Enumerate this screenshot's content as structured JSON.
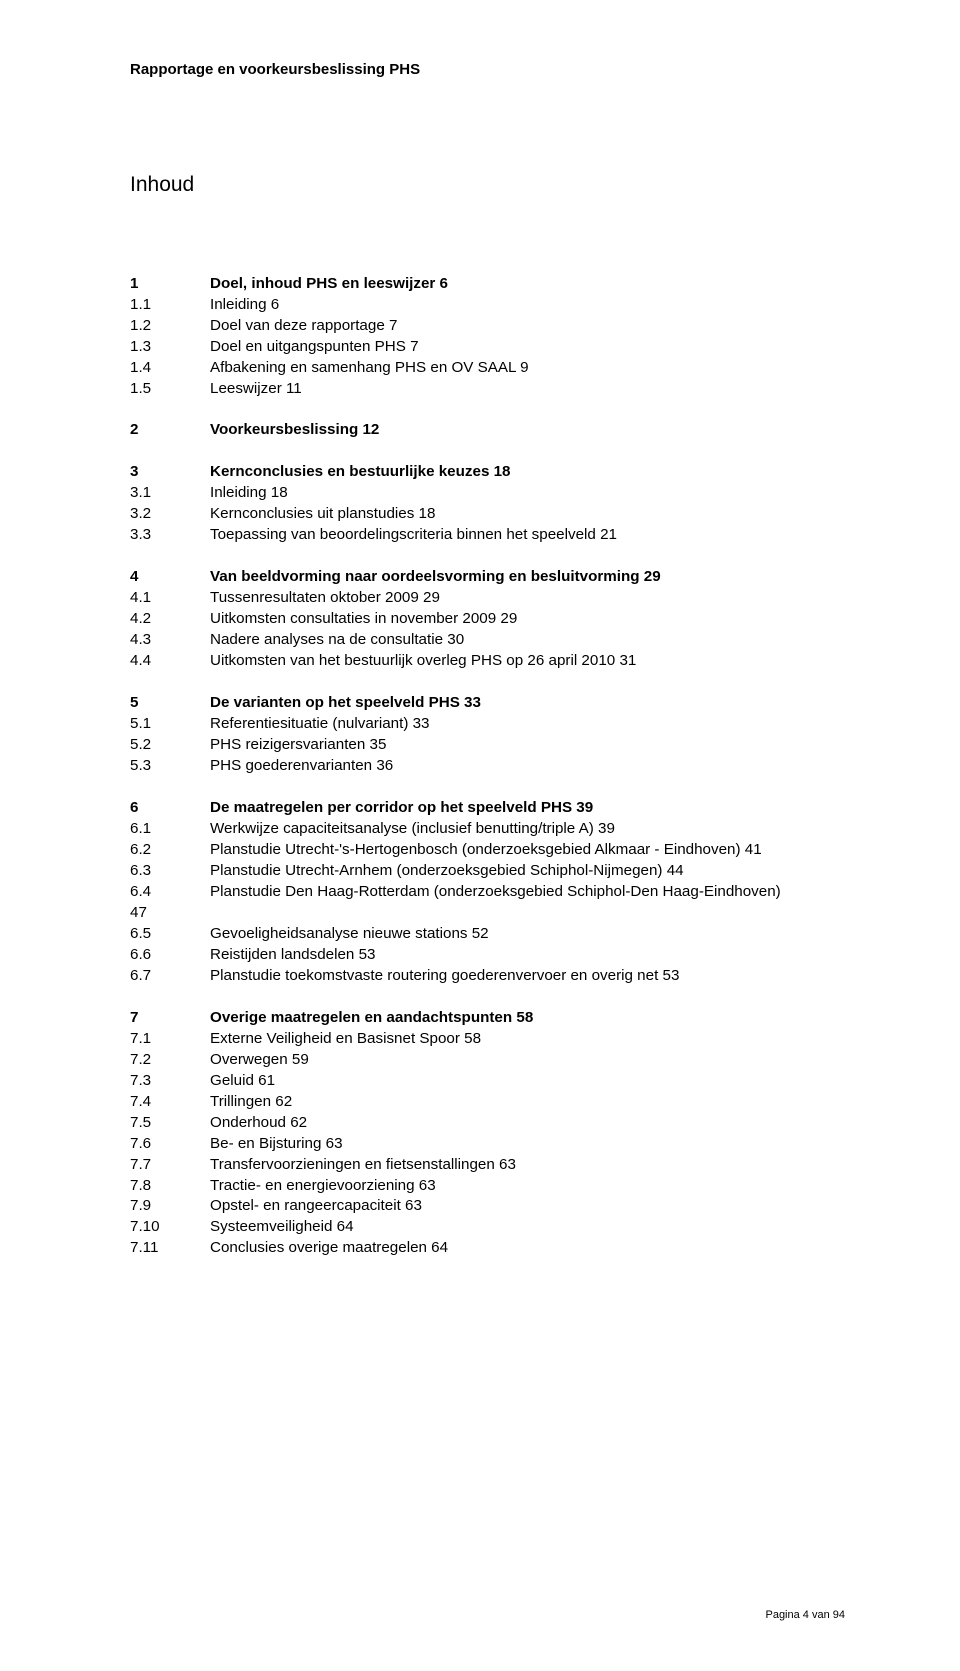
{
  "running_head": "Rapportage en voorkeursbeslissing PHS",
  "title": "Inhoud",
  "footer": "Pagina 4 van 94",
  "blocks": [
    {
      "rows": [
        {
          "num": "1",
          "text": "Doel, inhoud PHS en leeswijzer 6",
          "bold": true
        },
        {
          "num": "1.1",
          "text": "Inleiding 6"
        },
        {
          "num": "1.2",
          "text": "Doel van deze rapportage 7"
        },
        {
          "num": "1.3",
          "text": "Doel en uitgangspunten PHS 7"
        },
        {
          "num": "1.4",
          "text": "Afbakening en samenhang PHS en OV SAAL 9"
        },
        {
          "num": "1.5",
          "text": "Leeswijzer 11"
        }
      ]
    },
    {
      "rows": [
        {
          "num": "2",
          "text": "Voorkeursbeslissing 12",
          "bold": true
        }
      ]
    },
    {
      "rows": [
        {
          "num": "3",
          "text": "Kernconclusies en bestuurlijke keuzes 18",
          "bold": true
        },
        {
          "num": "3.1",
          "text": "Inleiding 18"
        },
        {
          "num": "3.2",
          "text": "Kernconclusies uit planstudies 18"
        },
        {
          "num": "3.3",
          "text": "Toepassing van beoordelingscriteria binnen het speelveld 21"
        }
      ]
    },
    {
      "rows": [
        {
          "num": "4",
          "text": "Van beeldvorming naar oordeelsvorming en besluitvorming 29",
          "bold": true
        },
        {
          "num": "4.1",
          "text": "Tussenresultaten oktober 2009 29"
        },
        {
          "num": "4.2",
          "text": "Uitkomsten consultaties in november 2009 29"
        },
        {
          "num": "4.3",
          "text": "Nadere analyses na de consultatie 30"
        },
        {
          "num": "4.4",
          "text": "Uitkomsten van het bestuurlijk overleg PHS op 26 april 2010 31"
        }
      ]
    },
    {
      "rows": [
        {
          "num": "5",
          "text": "De varianten op het speelveld PHS 33",
          "bold": true
        },
        {
          "num": "5.1",
          "text": "Referentiesituatie (nulvariant) 33"
        },
        {
          "num": "5.2",
          "text": "PHS reizigersvarianten 35"
        },
        {
          "num": "5.3",
          "text": "PHS goederenvarianten 36"
        }
      ]
    },
    {
      "rows": [
        {
          "num": "6",
          "text": "De maatregelen per corridor op het speelveld PHS 39",
          "bold": true
        },
        {
          "num": "6.1",
          "text": "Werkwijze capaciteitsanalyse (inclusief benutting/triple A) 39"
        },
        {
          "num": "6.2",
          "text": "Planstudie Utrecht-'s-Hertogenbosch (onderzoeksgebied Alkmaar - Eindhoven) 41"
        },
        {
          "num": "6.3",
          "text": "Planstudie Utrecht-Arnhem (onderzoeksgebied Schiphol-Nijmegen) 44"
        },
        {
          "num": "6.4",
          "text": "Planstudie Den Haag-Rotterdam (onderzoeksgebied Schiphol-Den Haag-Eindhoven)"
        },
        {
          "num": "47",
          "text": ""
        },
        {
          "num": "6.5",
          "text": "Gevoeligheidsanalyse nieuwe stations 52"
        },
        {
          "num": "6.6",
          "text": "Reistijden landsdelen 53"
        },
        {
          "num": "6.7",
          "text": "Planstudie toekomstvaste routering goederenvervoer en overig net 53"
        }
      ]
    },
    {
      "rows": [
        {
          "num": "7",
          "text": "Overige maatregelen en aandachtspunten 58",
          "bold": true
        },
        {
          "num": "7.1",
          "text": "Externe Veiligheid en Basisnet Spoor 58"
        },
        {
          "num": "7.2",
          "text": "Overwegen 59"
        },
        {
          "num": "7.3",
          "text": "Geluid 61"
        },
        {
          "num": "7.4",
          "text": "Trillingen 62"
        },
        {
          "num": "7.5",
          "text": "Onderhoud 62"
        },
        {
          "num": "7.6",
          "text": "Be- en Bijsturing 63"
        },
        {
          "num": "7.7",
          "text": "Transfervoorzieningen en fietsenstallingen 63"
        },
        {
          "num": "7.8",
          "text": "Tractie- en energievoorziening 63"
        },
        {
          "num": "7.9",
          "text": "Opstel- en rangeercapaciteit 63"
        },
        {
          "num": "7.10",
          "text": "Systeemveiligheid 64"
        },
        {
          "num": "7.11",
          "text": "Conclusies overige maatregelen 64"
        }
      ]
    }
  ]
}
